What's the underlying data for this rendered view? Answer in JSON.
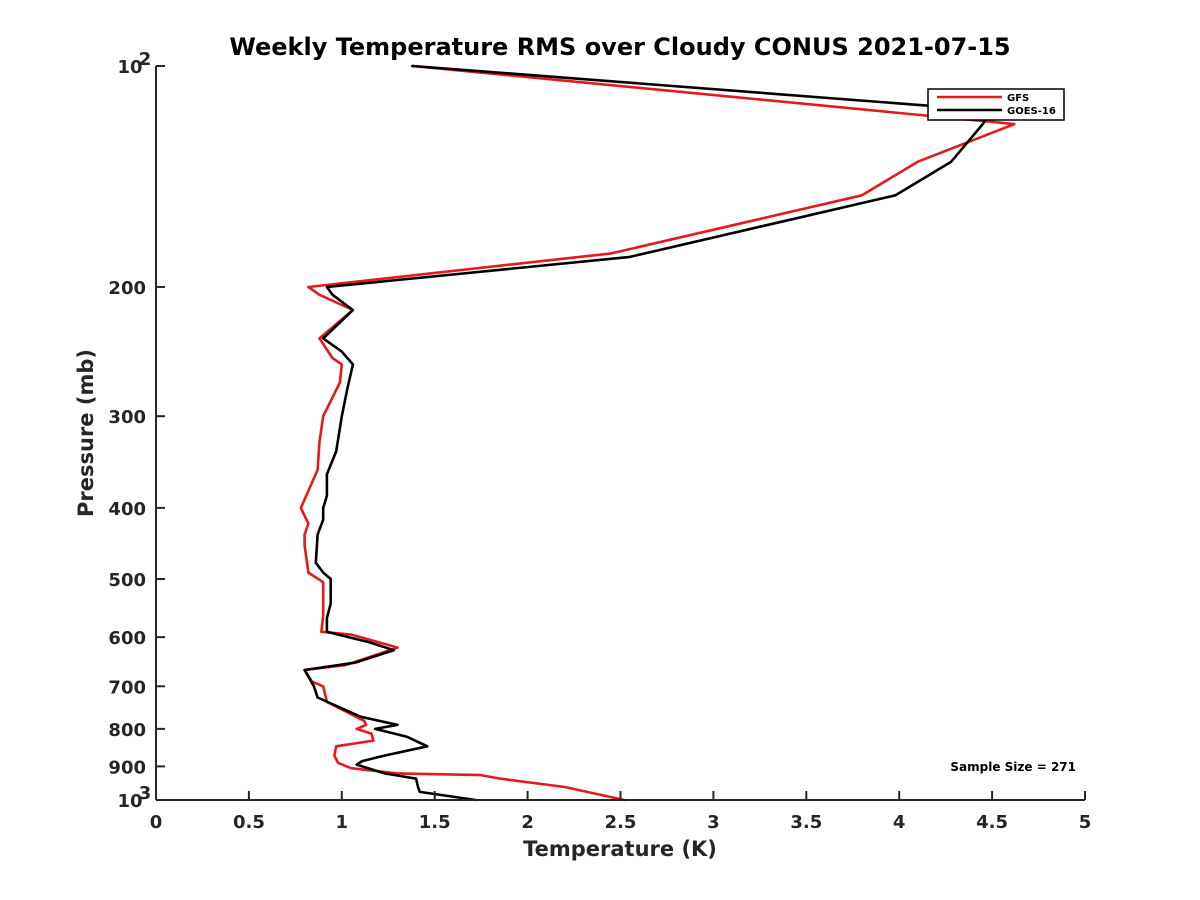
{
  "chart_data": {
    "type": "line",
    "title": "Weekly Temperature RMS over Cloudy CONUS 2021-07-15",
    "xlabel": "Temperature (K)",
    "ylabel": "Pressure (mb)",
    "xlim": [
      0,
      5
    ],
    "ylim": [
      1000,
      100
    ],
    "yscale": "log",
    "grid": false,
    "legend_position": "top-right",
    "x_ticks": [
      0,
      0.5,
      1,
      1.5,
      2,
      2.5,
      3,
      3.5,
      4,
      4.5,
      5
    ],
    "x_tick_labels": [
      "0",
      "0.5",
      "1",
      "1.5",
      "2",
      "2.5",
      "3",
      "3.5",
      "4",
      "4.5",
      "5"
    ],
    "y_ticks": [
      {
        "value": 100,
        "base": "10",
        "exp": "2"
      },
      {
        "value": 200,
        "label": "200"
      },
      {
        "value": 300,
        "label": "300"
      },
      {
        "value": 400,
        "label": "400"
      },
      {
        "value": 500,
        "label": "500"
      },
      {
        "value": 600,
        "label": "600"
      },
      {
        "value": 700,
        "label": "700"
      },
      {
        "value": 800,
        "label": "800"
      },
      {
        "value": 900,
        "label": "900"
      },
      {
        "value": 1000,
        "base": "10",
        "exp": "3"
      }
    ],
    "annotation": "Sample Size = 271",
    "series": [
      {
        "name": "GFS",
        "color": "#e41a1c",
        "points": [
          [
            1.38,
            100
          ],
          [
            4.62,
            120
          ],
          [
            4.1,
            135
          ],
          [
            3.8,
            150
          ],
          [
            2.45,
            180
          ],
          [
            0.82,
            200
          ],
          [
            0.88,
            205
          ],
          [
            1.06,
            215
          ],
          [
            0.88,
            235
          ],
          [
            0.95,
            250
          ],
          [
            1.0,
            255
          ],
          [
            0.99,
            270
          ],
          [
            0.9,
            300
          ],
          [
            0.88,
            325
          ],
          [
            0.87,
            355
          ],
          [
            0.78,
            400
          ],
          [
            0.8,
            410
          ],
          [
            0.82,
            420
          ],
          [
            0.8,
            435
          ],
          [
            0.8,
            450
          ],
          [
            0.82,
            490
          ],
          [
            0.9,
            505
          ],
          [
            0.9,
            520
          ],
          [
            0.9,
            560
          ],
          [
            0.89,
            590
          ],
          [
            1.05,
            595
          ],
          [
            1.3,
            620
          ],
          [
            1.02,
            655
          ],
          [
            0.8,
            665
          ],
          [
            0.84,
            690
          ],
          [
            0.9,
            700
          ],
          [
            0.92,
            735
          ],
          [
            1.12,
            780
          ],
          [
            1.13,
            790
          ],
          [
            1.08,
            800
          ],
          [
            1.16,
            812
          ],
          [
            1.17,
            830
          ],
          [
            0.97,
            845
          ],
          [
            0.96,
            870
          ],
          [
            0.98,
            890
          ],
          [
            1.05,
            905
          ],
          [
            1.3,
            920
          ],
          [
            1.75,
            925
          ],
          [
            1.85,
            935
          ],
          [
            2.2,
            960
          ],
          [
            2.52,
            1000
          ]
        ]
      },
      {
        "name": "GOES-16",
        "color": "#000000",
        "points": [
          [
            1.38,
            100
          ],
          [
            4.5,
            115
          ],
          [
            4.45,
            120
          ],
          [
            4.28,
            135
          ],
          [
            3.98,
            150
          ],
          [
            2.55,
            182
          ],
          [
            0.92,
            200
          ],
          [
            0.95,
            205
          ],
          [
            1.06,
            215
          ],
          [
            0.9,
            235
          ],
          [
            1.0,
            245
          ],
          [
            1.06,
            255
          ],
          [
            1.03,
            275
          ],
          [
            1.0,
            300
          ],
          [
            0.97,
            335
          ],
          [
            0.92,
            360
          ],
          [
            0.92,
            385
          ],
          [
            0.9,
            400
          ],
          [
            0.9,
            415
          ],
          [
            0.87,
            435
          ],
          [
            0.86,
            475
          ],
          [
            0.9,
            490
          ],
          [
            0.94,
            500
          ],
          [
            0.94,
            540
          ],
          [
            0.92,
            565
          ],
          [
            0.92,
            590
          ],
          [
            1.15,
            610
          ],
          [
            1.28,
            625
          ],
          [
            1.07,
            650
          ],
          [
            0.8,
            665
          ],
          [
            0.85,
            700
          ],
          [
            0.87,
            725
          ],
          [
            1.1,
            770
          ],
          [
            1.3,
            790
          ],
          [
            1.18,
            800
          ],
          [
            1.35,
            820
          ],
          [
            1.46,
            845
          ],
          [
            1.23,
            870
          ],
          [
            1.11,
            885
          ],
          [
            1.08,
            895
          ],
          [
            1.23,
            920
          ],
          [
            1.4,
            935
          ],
          [
            1.41,
            960
          ],
          [
            1.42,
            975
          ],
          [
            1.72,
            1000
          ]
        ]
      }
    ]
  }
}
